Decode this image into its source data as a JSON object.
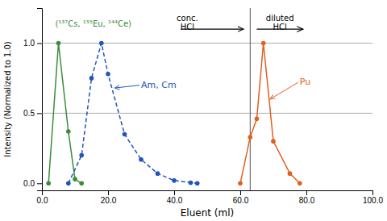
{
  "chart_data": {
    "type": "line",
    "xlabel": "Eluent (ml)",
    "ylabel": "Intensity (Normalized to 1.0)",
    "xlim": [
      0,
      100
    ],
    "ylim": [
      -0.05,
      1.25
    ],
    "xticks": [
      {
        "value": 0.0,
        "label": "0.0"
      },
      {
        "value": 20.0,
        "label": "20.0"
      },
      {
        "value": 40.0,
        "label": "40.0"
      },
      {
        "value": 60.0,
        "label": "60.0"
      },
      {
        "value": 80.0,
        "label": "80.0"
      },
      {
        "value": 100.0,
        "label": "100.0"
      }
    ],
    "yticks": [
      {
        "value": 0.0,
        "label": "0.0"
      },
      0.5,
      {
        "value": 1.0,
        "label": "1.0"
      }
    ],
    "series": [
      {
        "x": [
          2,
          5,
          8,
          10,
          12
        ],
        "values": [
          0.0,
          1.0,
          0.37,
          0.03,
          0.0
        ],
        "color": "#3a8c3a",
        "line_style": "solid",
        "marker": "circle"
      },
      {
        "x": [
          8,
          12,
          15,
          18,
          20,
          25,
          30,
          35,
          40,
          45,
          47
        ],
        "values": [
          0.0,
          0.2,
          0.75,
          1.0,
          0.78,
          0.35,
          0.17,
          0.07,
          0.02,
          0.005,
          0.0
        ],
        "color": "#2255bb",
        "line_style": "dashed",
        "marker": "circle"
      },
      {
        "x": [
          60,
          63,
          65,
          67,
          70,
          75,
          78
        ],
        "values": [
          0.0,
          0.33,
          0.46,
          1.0,
          0.3,
          0.07,
          0.0
        ],
        "color": "#e06020",
        "line_style": "solid",
        "marker": "circle"
      }
    ],
    "annotations": [
      {
        "type": "hline",
        "y": 0.5,
        "color": "#999999"
      },
      {
        "type": "hline",
        "y": 1.0,
        "color": "#999999"
      },
      {
        "type": "vline",
        "x": 63,
        "color": "#555555"
      },
      {
        "type": "text",
        "text": "(¹³⁷Cs, ¹⁵⁵Eu, ¹⁴⁴Ce)",
        "x": 4,
        "y": 1.16,
        "color": "#3a8c3a"
      },
      {
        "type": "text",
        "text": "Am, Cm",
        "x": 30,
        "y": 0.7,
        "arrow_x": 22,
        "arrow_y": 0.68,
        "color": "#2255bb"
      },
      {
        "type": "text",
        "text": "Pu",
        "x": 78,
        "y": 0.72,
        "arrow_x": 69,
        "arrow_y": 0.6,
        "color": "#e06020"
      },
      {
        "type": "text",
        "text": "conc.\nHCl",
        "x": 44,
        "y": 1.2,
        "color": "#000000"
      },
      {
        "type": "arrow",
        "x": 42,
        "y": 1.1,
        "arrow_x": 61,
        "arrow_y": 1.1,
        "color": "#000000"
      },
      {
        "type": "text",
        "text": "diluted\nHCl",
        "x": 72,
        "y": 1.2,
        "color": "#000000"
      },
      {
        "type": "arrow",
        "x": 65,
        "y": 1.1,
        "arrow_x": 79,
        "arrow_y": 1.1,
        "color": "#000000"
      }
    ]
  }
}
